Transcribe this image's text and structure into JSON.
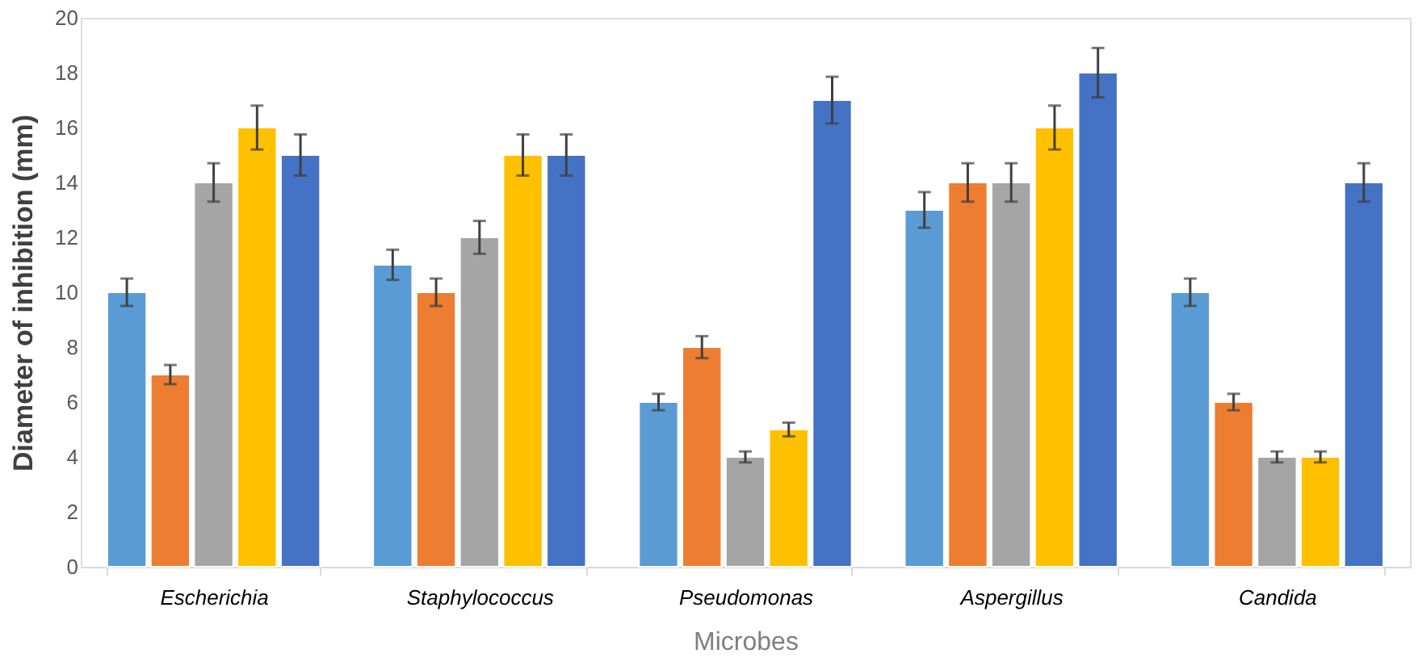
{
  "chart_data": {
    "type": "bar",
    "xlabel": "Microbes",
    "ylabel": "Diameter of inhibition (mm)",
    "categories": [
      "Escherichia",
      "Staphylococcus",
      "Pseudomonas",
      "Aspergillus",
      "Candida"
    ],
    "series": [
      {
        "color": "#5b9bd5",
        "values": [
          10,
          11,
          6,
          13,
          10
        ],
        "errors": [
          0.5,
          0.55,
          0.3,
          0.65,
          0.5
        ]
      },
      {
        "color": "#ed7d31",
        "values": [
          7,
          10,
          8,
          14,
          6
        ],
        "errors": [
          0.35,
          0.5,
          0.4,
          0.7,
          0.3
        ]
      },
      {
        "color": "#a5a5a5",
        "values": [
          14,
          12,
          4,
          14,
          4
        ],
        "errors": [
          0.7,
          0.6,
          0.2,
          0.7,
          0.2
        ]
      },
      {
        "color": "#ffc000",
        "values": [
          16,
          15,
          5,
          16,
          4
        ],
        "errors": [
          0.8,
          0.75,
          0.25,
          0.8,
          0.2
        ]
      },
      {
        "color": "#4472c4",
        "values": [
          15,
          15,
          17,
          18,
          14
        ],
        "errors": [
          0.75,
          0.75,
          0.85,
          0.9,
          0.7
        ]
      }
    ],
    "ylim": [
      0,
      20
    ],
    "yticks": [
      0,
      2,
      4,
      6,
      8,
      10,
      12,
      14,
      16,
      18,
      20
    ],
    "grid": false
  }
}
